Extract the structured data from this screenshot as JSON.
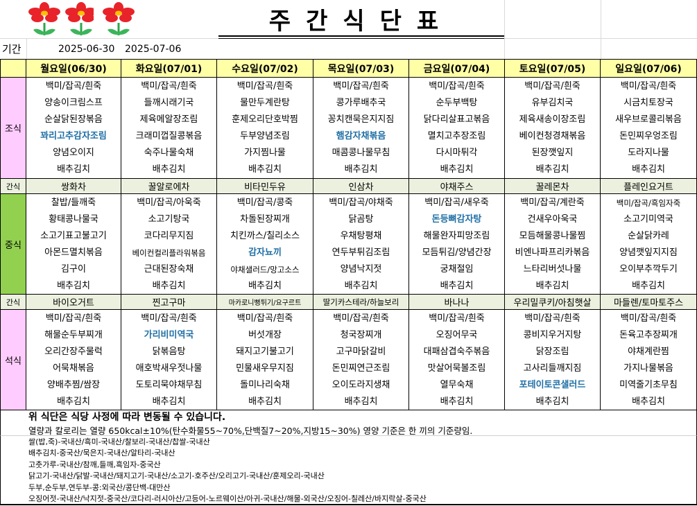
{
  "title": "주간식단표",
  "period": {
    "label": "기간",
    "start": "2025-06-30",
    "end": "2025-07-06"
  },
  "meal_labels": {
    "breakfast": "조식",
    "snack1": "간식",
    "lunch": "중식",
    "snack2": "간식",
    "dinner": "석식"
  },
  "colors": {
    "header": "#ffffa6",
    "breakfast": "#ffccff",
    "lunch": "#92d050",
    "dinner": "#ffccff",
    "snack": "#ebf1de",
    "highlight": "#1f6fa5"
  },
  "highlighted": [
    "꽈리고추감자조림",
    "햄감자채볶음",
    "감자뇨끼",
    "돈등뼈감자탕",
    "가리비미역국",
    "포테이토콘샐러드"
  ],
  "days": [
    {
      "header": "월요일(06/30)",
      "breakfast": [
        "백미/잡곡/흰죽",
        "양송이크림스프",
        "순살닭된장볶음",
        "꽈리고추감자조림",
        "양념오이지",
        "배추김치"
      ],
      "snack1": "쌍화차",
      "lunch": [
        "찰밥/들깨죽",
        "황태콩나물국",
        "소고기표고불고기",
        "아몬드멸치볶음",
        "김구이",
        "배추김치"
      ],
      "snack2": "바이오거트",
      "dinner": [
        "백미/잡곡/흰죽",
        "해물순두부찌개",
        "오리간장주물럭",
        "어묵채볶음",
        "양배추찜/쌈장",
        "배추김치"
      ]
    },
    {
      "header": "화요일(07/01)",
      "breakfast": [
        "백미/잡곡/흰죽",
        "들깨시래기국",
        "제육메알장조림",
        "크래미껍질콩볶음",
        "숙주나물숙채",
        "배추김치"
      ],
      "snack1": "꿀알로에차",
      "lunch": [
        "백미/잡곡/아욱죽",
        "소고기탕국",
        "코다리무지짐",
        "베이컨컬리플라워볶음",
        "근대된장숙채",
        "배추김치"
      ],
      "snack2": "찐고구마",
      "dinner": [
        "백미/잡곡/흰죽",
        "가리비미역국",
        "닭볶음탕",
        "애호박새우젓나물",
        "도토리묵야채무침",
        "배추김치"
      ]
    },
    {
      "header": "수요일(07/02)",
      "breakfast": [
        "백미/잡곡/흰죽",
        "물만두계란탕",
        "훈제오리단호박찜",
        "두부양념조림",
        "가지찜나물",
        "배추김치"
      ],
      "snack1": "비타민두유",
      "lunch": [
        "백미/잡곡/콩죽",
        "차돌된장찌개",
        "치킨까스/칠리소스",
        "감자뇨끼",
        "야채샐러드/망고소스",
        "배추김치"
      ],
      "snack2": "마카로니뻥튀기/요구르트",
      "dinner": [
        "백미/잡곡/흰죽",
        "버섯개장",
        "돼지고기불고기",
        "민물새우무지짐",
        "돌미나리숙채",
        "배추김치"
      ]
    },
    {
      "header": "목요일(07/03)",
      "breakfast": [
        "백미/잡곡/흰죽",
        "콩가루배추국",
        "꽁치캔묵은지지짐",
        "햄감자채볶음",
        "매콤콩나물무침",
        "배추김치"
      ],
      "snack1": "인삼차",
      "lunch": [
        "백미/잡곡/야채죽",
        "닭곰탕",
        "우채탕평채",
        "연두부튀김조림",
        "양념낙지젓",
        "배추김치"
      ],
      "snack2": "딸기카스테라/하늘보리",
      "dinner": [
        "백미/잡곡/흰죽",
        "청국장찌개",
        "고구마닭갈비",
        "돈민찌연근조림",
        "오이도라지생채",
        "배추김치"
      ]
    },
    {
      "header": "금요일(07/04)",
      "breakfast": [
        "백미/잡곡/흰죽",
        "순두부백탕",
        "닭다리살표고볶음",
        "멸치고추장조림",
        "다시마튀각",
        "배추김치"
      ],
      "snack1": "야채주스",
      "lunch": [
        "백미/잡곡/새우죽",
        "돈등뼈감자탕",
        "해물완자피망조림",
        "모듬튀김/양념간장",
        "궁채절임",
        "배추김치"
      ],
      "snack2": "바나나",
      "dinner": [
        "백미/잡곡/흰죽",
        "오징어무국",
        "대패삼겹숙주볶음",
        "맛살어묵볼조림",
        "열무숙채",
        "배추김치"
      ]
    },
    {
      "header": "토요일(07/05)",
      "breakfast": [
        "백미/잡곡/흰죽",
        "유부김치국",
        "제육새송이장조림",
        "베이컨청경채볶음",
        "된장깻잎지",
        "배추김치"
      ],
      "snack1": "꿀레몬차",
      "lunch": [
        "백미/잡곡/계란죽",
        "건새우아욱국",
        "모듬해물콩나물찜",
        "비엔나파프리카볶음",
        "느타리버섯나물",
        "배추김치"
      ],
      "snack2": "우리밀쿠키/아침햇살",
      "dinner": [
        "백미/잡곡/흰죽",
        "콩비지우거지탕",
        "닭장조림",
        "고사리들깨지짐",
        "포테이토콘샐러드",
        "배추김치"
      ]
    },
    {
      "header": "일요일(07/06)",
      "breakfast": [
        "백미/잡곡/흰죽",
        "시금치토장국",
        "새우브로콜리볶음",
        "돈민찌우엉조림",
        "도라지나물",
        "배추김치"
      ],
      "snack1": "플레인요거트",
      "lunch": [
        "백미/잡곡/흑임자죽",
        "소고기미역국",
        "순살닭카레",
        "양념깻잎지지짐",
        "오이부추깍두기",
        "배추김치"
      ],
      "snack2": "마들렌/토마토주스",
      "dinner": [
        "백미/잡곡/흰죽",
        "돈육고추장찌개",
        "야채계란찜",
        "가지나물볶음",
        "미역줄기초무침",
        "배추김치"
      ]
    }
  ],
  "notice": {
    "line1": "위 식단은 식당 사정에 따라 변동될 수 있습니다.",
    "line2": "열량과 칼로리는 열량 650kcal±10%(탄수화물55~70%,단백질7~20%,지방15~30%) 영양 기준은 한 끼의 기준량임."
  },
  "origin": [
    "쌀(밥,죽)-국내산/흑미-국내산/찰보리-국내산/찹쌀-국내산",
    "배추김치-중국산/묵은지-국내산/알타리-국내산",
    "고춧가루-국내산/참깨,들깨,흑임자-중국산",
    "닭고기-국내산/닭발-국내산/돼지고기-국내산/소고기-호주산/오리고기-국내산/훈제오리-국내산",
    "두부,순두부,연두부-콩:외국산/콩단백-대만산",
    "오징어젓-국내산/낙지젓-중국산/코다리-러시아산/고등어-노르웨이산/아귀-국내산/해물-외국산/오징어-칠레산/바지락살-중국산"
  ]
}
